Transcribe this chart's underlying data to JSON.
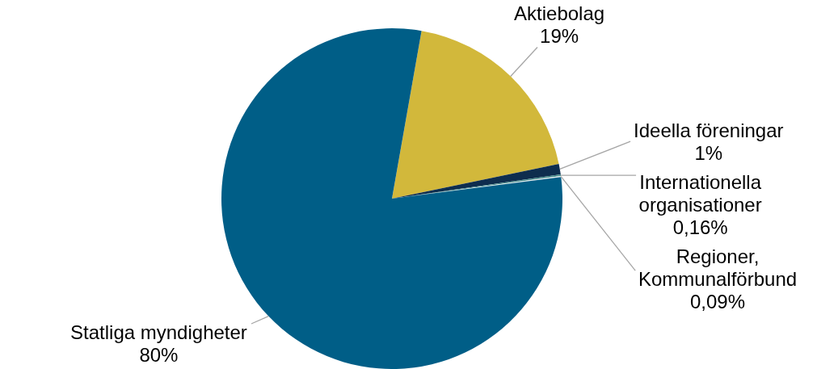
{
  "chart_data": {
    "type": "pie",
    "categories": [
      "Aktiebolag",
      "Ideella föreningar",
      "Internationella organisationer",
      "Regioner, Kommunalförbund",
      "Statliga myndigheter"
    ],
    "values": [
      19,
      1,
      0.16,
      0.09,
      80
    ],
    "colors": [
      "#d2b83b",
      "#0e2d4e",
      "#4a8c8c",
      "#e8eef0",
      "#005e87"
    ],
    "value_labels": [
      "19%",
      "1%",
      "0,16%",
      "0,09%",
      "80%"
    ]
  }
}
